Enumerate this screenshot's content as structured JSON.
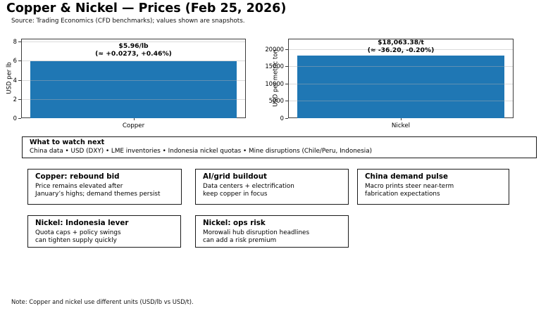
{
  "page": {
    "title": "Copper & Nickel — Prices (Feb 25, 2026)",
    "source": "Source: Trading Economics (CFD benchmarks); values shown are snapshots.",
    "note": "Note: Copper and nickel use different units (USD/lb vs USD/t)."
  },
  "chart_data": [
    {
      "type": "bar",
      "categories": [
        "Copper"
      ],
      "values": [
        5.96
      ],
      "ylabel": "USD per lb",
      "xlabel": "",
      "ylim": [
        0,
        8.3
      ],
      "yticks": [
        0,
        2,
        4,
        6,
        8
      ],
      "grid": true,
      "legend_position": "none",
      "bar_color": "#1f77b4",
      "annotation": "$5.96/lb\n(≈ +0.0273, +0.46%)"
    },
    {
      "type": "bar",
      "categories": [
        "Nickel"
      ],
      "values": [
        18063.38
      ],
      "ylabel": "USD per metric ton",
      "xlabel": "",
      "ylim": [
        0,
        23000
      ],
      "yticks": [
        0,
        5000,
        10000,
        15000,
        20000
      ],
      "grid": true,
      "legend_position": "none",
      "bar_color": "#1f77b4",
      "annotation": "$18,063.38/t\n(≈ -36.20, -0.20%)"
    }
  ],
  "watch": {
    "title": "What to watch next",
    "body": "China data • USD (DXY) • LME inventories • Indonesia nickel quotas • Mine disruptions (Chile/Peru, Indonesia)"
  },
  "cards": [
    {
      "title": "Copper: rebound bid",
      "body": "Price remains elevated after\nJanuary’s highs; demand themes persist"
    },
    {
      "title": "AI/grid buildout",
      "body": "Data centers + electrification\nkeep copper in focus"
    },
    {
      "title": "China demand pulse",
      "body": "Macro prints steer near-term\nfabrication expectations"
    },
    {
      "title": "Nickel: Indonesia lever",
      "body": "Quota caps + policy swings\ncan tighten supply quickly"
    },
    {
      "title": "Nickel: ops risk",
      "body": "Morowali hub disruption headlines\ncan add a risk premium"
    }
  ]
}
